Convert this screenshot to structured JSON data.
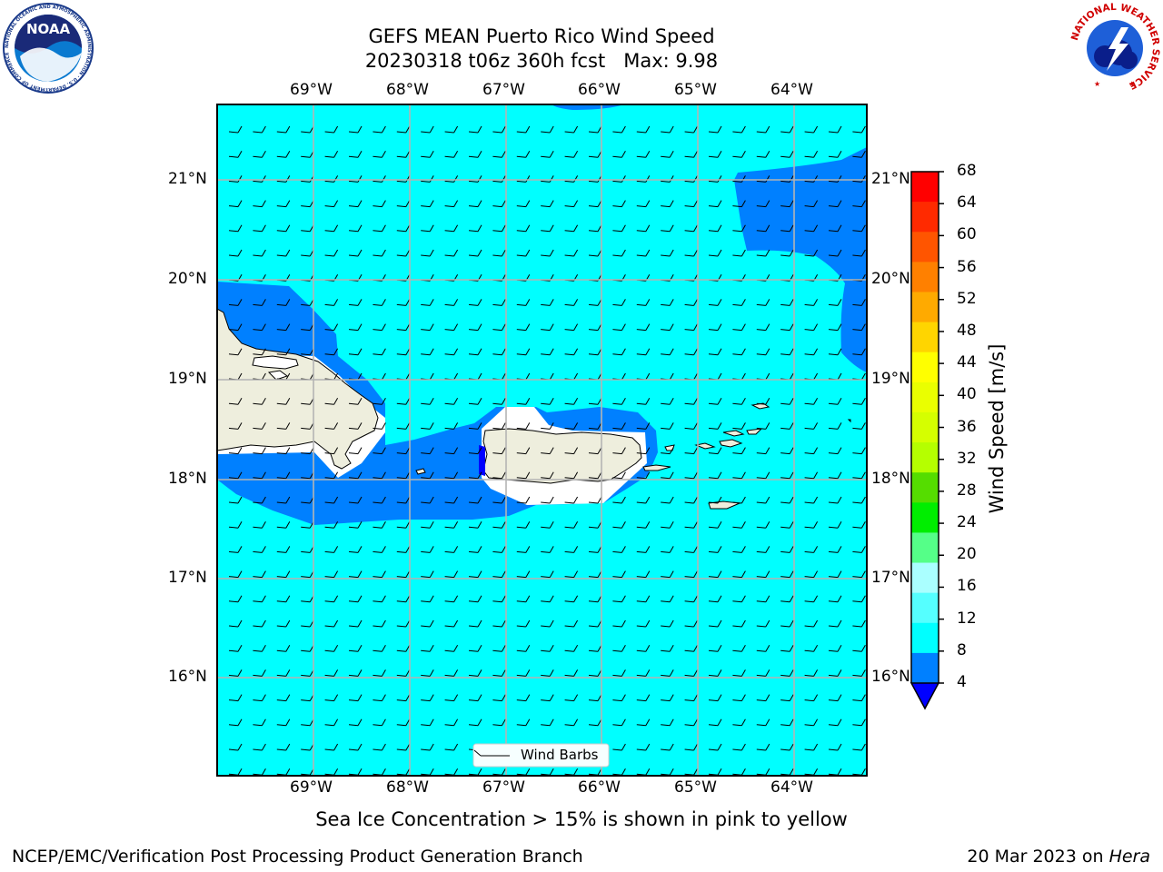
{
  "title": {
    "line1": "GEFS MEAN Puerto Rico Wind Speed",
    "line2": "20230318 t06z 360h fcst   Max: 9.98"
  },
  "map": {
    "lon_labels": [
      "69°W",
      "68°W",
      "67°W",
      "66°W",
      "65°W",
      "64°W"
    ],
    "lat_labels": [
      "21°N",
      "20°N",
      "19°N",
      "18°N",
      "17°N",
      "16°N"
    ],
    "legend_label": "Wind Barbs",
    "barb_symbol": "wind-barb-10kt-easterly",
    "colors": {
      "ocean": "#00ffff",
      "band_4_8": "#0080ff",
      "land": "#eeeedd",
      "ice_mask": "#ffffff"
    }
  },
  "colorbar": {
    "label": "Wind Speed [m/s]",
    "ticks": [
      "68",
      "64",
      "60",
      "56",
      "52",
      "48",
      "44",
      "40",
      "36",
      "32",
      "28",
      "24",
      "20",
      "16",
      "12",
      "8",
      "4"
    ],
    "colors": [
      "#ff0000",
      "#ff2a00",
      "#ff5500",
      "#ff8000",
      "#ffaa00",
      "#ffd500",
      "#ffff00",
      "#eaff00",
      "#d5ff00",
      "#b5ff00",
      "#55dd00",
      "#00ee00",
      "#55ff88",
      "#aaffff",
      "#55ffff",
      "#00ffff",
      "#0080ff"
    ],
    "underflow_color": "#0000ff"
  },
  "subtitle": "Sea Ice Concentration > 15% is shown in pink to yellow",
  "footer": {
    "left": "NCEP/EMC/Verification Post Processing Product Generation Branch",
    "date": "20 Mar 2023 on ",
    "machine": "Hera"
  },
  "logos": {
    "noaa_text": "NOAA",
    "noaa_ring": "NATIONAL OCEANIC AND ATMOSPHERIC ADMINISTRATION · U.S. DEPARTMENT OF COMMERCE",
    "nws_ring": "NATIONAL WEATHER SERVICE"
  }
}
